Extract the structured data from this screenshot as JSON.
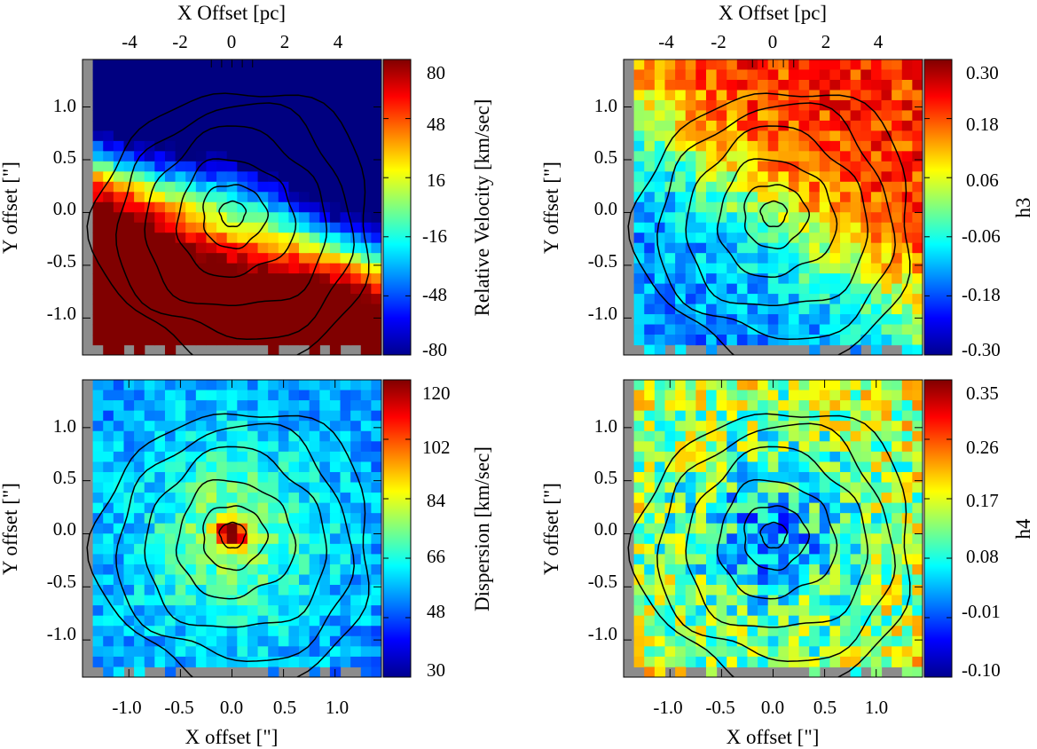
{
  "chart_data": [
    {
      "type": "heatmap",
      "panel": "top-left",
      "quantity": "velocity",
      "top_axis_title": "X Offset [pc]",
      "top_ticks": [
        "-4",
        "-2",
        "0",
        "2",
        "4"
      ],
      "top_tick_values": [
        -4,
        -2,
        0,
        2,
        4
      ],
      "ylabel": "Y offset [\"]",
      "y_ticks": [
        "1.0",
        "0.5",
        "0.0",
        "-0.5",
        "-1.0"
      ],
      "y_tick_values": [
        1.0,
        0.5,
        0.0,
        -0.5,
        -1.0
      ],
      "xlim": [
        -1.45,
        1.45
      ],
      "ylim": [
        -1.35,
        1.45
      ],
      "colorbar_label": "Relative Velocity [km/sec]",
      "colorbar_ticks": [
        "80",
        "48",
        "16",
        "-16",
        "-48",
        "-80"
      ],
      "colorbar_range": [
        -80,
        80
      ]
    },
    {
      "type": "heatmap",
      "panel": "top-right",
      "quantity": "h3",
      "top_axis_title": "X Offset [pc]",
      "top_ticks": [
        "-4",
        "-2",
        "0",
        "2",
        "4"
      ],
      "top_tick_values": [
        -4,
        -2,
        0,
        2,
        4
      ],
      "ylabel": "Y offset [\"]",
      "y_ticks": [
        "1.0",
        "0.5",
        "0.0",
        "-0.5",
        "-1.0"
      ],
      "y_tick_values": [
        1.0,
        0.5,
        0.0,
        -0.5,
        -1.0
      ],
      "xlim": [
        -1.45,
        1.45
      ],
      "ylim": [
        -1.35,
        1.45
      ],
      "colorbar_label": "h3",
      "colorbar_ticks": [
        "0.30",
        "0.18",
        "0.06",
        "-0.06",
        "-0.18",
        "-0.30"
      ],
      "colorbar_range": [
        -0.3,
        0.3
      ]
    },
    {
      "type": "heatmap",
      "panel": "bottom-left",
      "quantity": "dispersion",
      "ylabel": "Y offset [\"]",
      "y_ticks": [
        "1.0",
        "0.5",
        "0.0",
        "-0.5",
        "-1.0"
      ],
      "y_tick_values": [
        1.0,
        0.5,
        0.0,
        -0.5,
        -1.0
      ],
      "bottom_axis_title": "X offset [\"]",
      "x_ticks": [
        "-1.0",
        "-0.5",
        "0.0",
        "0.5",
        "1.0"
      ],
      "x_tick_values": [
        -1.0,
        -0.5,
        0.0,
        0.5,
        1.0
      ],
      "xlim": [
        -1.45,
        1.45
      ],
      "ylim": [
        -1.35,
        1.45
      ],
      "colorbar_label": "Dispersion [km/sec]",
      "colorbar_ticks": [
        "120",
        "102",
        "84",
        "66",
        "48",
        "30"
      ],
      "colorbar_range": [
        30,
        120
      ]
    },
    {
      "type": "heatmap",
      "panel": "bottom-right",
      "quantity": "h4",
      "ylabel": "Y offset [\"]",
      "y_ticks": [
        "1.0",
        "0.5",
        "0.0",
        "-0.5",
        "-1.0"
      ],
      "y_tick_values": [
        1.0,
        0.5,
        0.0,
        -0.5,
        -1.0
      ],
      "bottom_axis_title": "X offset [\"]",
      "x_ticks": [
        "-1.0",
        "-0.5",
        "0.0",
        "0.5",
        "1.0"
      ],
      "x_tick_values": [
        -1.0,
        -0.5,
        0.0,
        0.5,
        1.0
      ],
      "xlim": [
        -1.45,
        1.45
      ],
      "ylim": [
        -1.35,
        1.45
      ],
      "colorbar_label": "h4",
      "colorbar_ticks": [
        "0.35",
        "0.26",
        "0.17",
        "0.08",
        "-0.01",
        "-0.10"
      ],
      "colorbar_range": [
        -0.1,
        0.35
      ]
    }
  ],
  "contour_levels_radius_arcsec": [
    0.12,
    0.3,
    0.55,
    0.85,
    1.1,
    1.3
  ],
  "colors": {
    "missing_data": "#8c8c8c",
    "contour": "#000000"
  }
}
